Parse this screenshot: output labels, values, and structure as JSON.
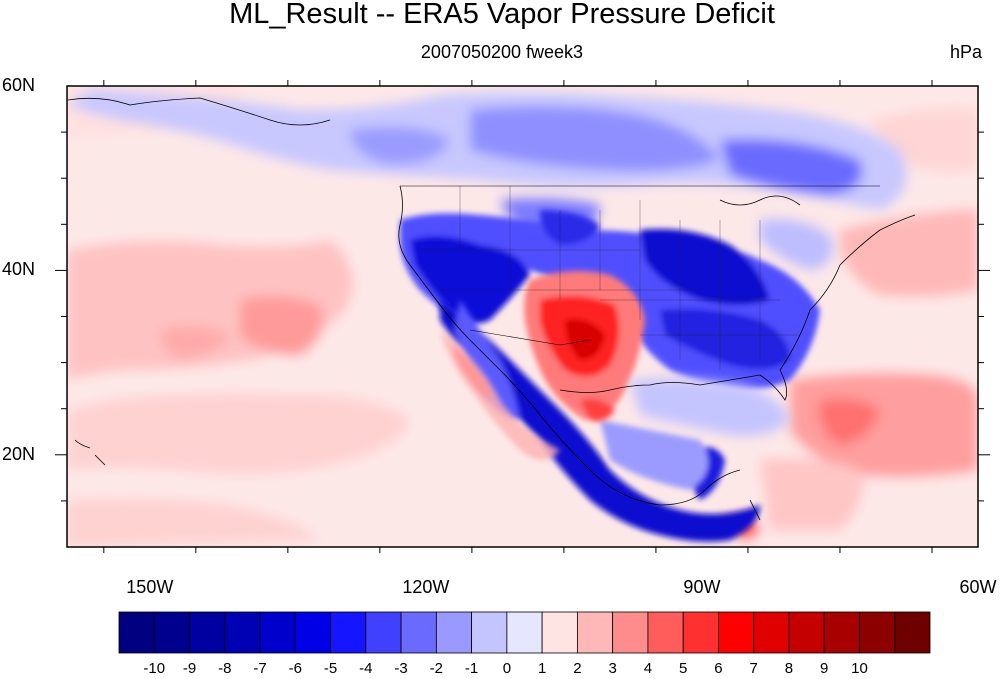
{
  "title": "ML_Result -- ERA5 Vapor Pressure Deficit",
  "subtitle": "2007050200 fweek3",
  "units": "hPa",
  "lat_ticks": [
    {
      "label": "60N",
      "value": 60
    },
    {
      "label": "40N",
      "value": 40
    },
    {
      "label": "20N",
      "value": 20
    }
  ],
  "lon_ticks": [
    {
      "label": "150W",
      "value": -150
    },
    {
      "label": "120W",
      "value": -120
    },
    {
      "label": "90W",
      "value": -90
    },
    {
      "label": "60W",
      "value": -60
    }
  ],
  "extent": {
    "lon_min": -159,
    "lon_max": -60,
    "lat_min": 10,
    "lat_max": 60
  },
  "colorbar": {
    "labels": [
      "-10",
      "-9",
      "-8",
      "-7",
      "-6",
      "-5",
      "-4",
      "-3",
      "-2",
      "-1",
      "0",
      "1",
      "2",
      "3",
      "4",
      "5",
      "6",
      "7",
      "8",
      "9",
      "10"
    ],
    "colors": [
      "#000080",
      "#00008f",
      "#0000a0",
      "#0000b5",
      "#0000cc",
      "#0000e6",
      "#1515ff",
      "#4040ff",
      "#6a6aff",
      "#9999ff",
      "#c4c4ff",
      "#e6e6ff",
      "#ffe4e4",
      "#ffb8b8",
      "#ff8c8c",
      "#ff5c5c",
      "#ff3030",
      "#ff0000",
      "#e00000",
      "#c40000",
      "#a80000",
      "#8c0000",
      "#6e0000"
    ]
  }
}
